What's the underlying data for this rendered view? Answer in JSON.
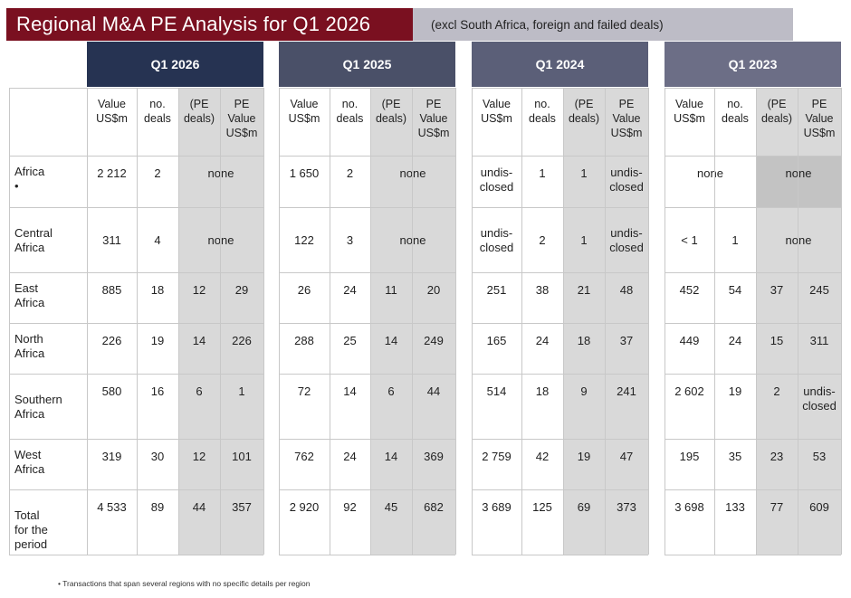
{
  "title": "Regional M&A PE Analysis for Q1 2026",
  "subtitle": "(excl South Africa, foreign and failed deals)",
  "colors": {
    "title_bg": "#7a1020",
    "subtitle_bg": "#bdbcc6",
    "q2026": "#263352",
    "q2025": "#4a5068",
    "q2024": "#5b5f78",
    "q2023": "#6c6e86",
    "shade": "#d9d9d9"
  },
  "quarters": [
    {
      "label": "Q1 2026",
      "headers": [
        "Value US$m",
        "no. deals",
        "(PE deals)",
        "PE Value US$m"
      ]
    },
    {
      "label": "Q1 2025",
      "headers": [
        "Value US$m",
        "no. deals",
        "(PE deals)",
        "PE Value US$m"
      ]
    },
    {
      "label": "Q1 2024",
      "headers": [
        "Value US$m",
        "no. deals",
        "(PE deals)",
        "PE Value US$m"
      ]
    },
    {
      "label": "Q1 2023",
      "headers": [
        "Value US$m",
        "no. deals",
        "(PE deals)",
        "PE Value US$m"
      ]
    }
  ],
  "rows": [
    {
      "label": "Africa •",
      "q2026": [
        "2 212",
        "2",
        "none"
      ],
      "q2025": [
        "1 650",
        "2",
        "none"
      ],
      "q2024": [
        "undis-closed",
        "1",
        "1",
        "undis-closed"
      ],
      "q2023": [
        "none",
        "none"
      ]
    },
    {
      "label": "Central Africa",
      "q2026": [
        "311",
        "4",
        "none"
      ],
      "q2025": [
        "122",
        "3",
        "none"
      ],
      "q2024": [
        "undis-closed",
        "2",
        "1",
        "undis-closed"
      ],
      "q2023": [
        "< 1",
        "1",
        "none"
      ]
    },
    {
      "label": "East Africa",
      "q2026": [
        "885",
        "18",
        "12",
        "29"
      ],
      "q2025": [
        "26",
        "24",
        "11",
        "20"
      ],
      "q2024": [
        "251",
        "38",
        "21",
        "48"
      ],
      "q2023": [
        "452",
        "54",
        "37",
        "245"
      ]
    },
    {
      "label": "North Africa",
      "q2026": [
        "226",
        "19",
        "14",
        "226"
      ],
      "q2025": [
        "288",
        "25",
        "14",
        "249"
      ],
      "q2024": [
        "165",
        "24",
        "18",
        "37"
      ],
      "q2023": [
        "449",
        "24",
        "15",
        "311"
      ]
    },
    {
      "label": "Southern Africa",
      "q2026": [
        "580",
        "16",
        "6",
        "1"
      ],
      "q2025": [
        "72",
        "14",
        "6",
        "44"
      ],
      "q2024": [
        "514",
        "18",
        "9",
        "241"
      ],
      "q2023": [
        "2 602",
        "19",
        "2",
        "undis-closed"
      ]
    },
    {
      "label": "West Africa",
      "q2026": [
        "319",
        "30",
        "12",
        "101"
      ],
      "q2025": [
        "762",
        "24",
        "14",
        "369"
      ],
      "q2024": [
        "2 759",
        "42",
        "19",
        "47"
      ],
      "q2023": [
        "195",
        "35",
        "23",
        "53"
      ]
    },
    {
      "label": "Total for the period",
      "q2026": [
        "4 533",
        "89",
        "44",
        "357"
      ],
      "q2025": [
        "2 920",
        "92",
        "45",
        "682"
      ],
      "q2024": [
        "3 689",
        "125",
        "69",
        "373"
      ],
      "q2023": [
        "3 698",
        "133",
        "77",
        "609"
      ]
    }
  ],
  "footnote": "•   Transactions that span several regions with no specific details per region"
}
